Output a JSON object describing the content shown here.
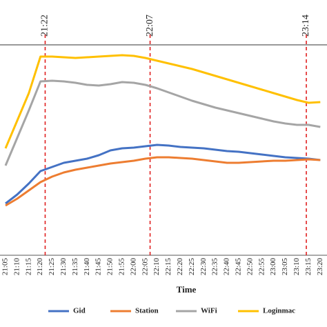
{
  "chart_data": {
    "type": "line",
    "categories": [
      "21:05",
      "21:10",
      "21:15",
      "21:20",
      "21:25",
      "21:30",
      "21:35",
      "21:40",
      "21:45",
      "21:50",
      "21:55",
      "22:00",
      "22:05",
      "22:10",
      "22:15",
      "22:20",
      "22:25",
      "22:30",
      "22:35",
      "22:40",
      "22:45",
      "22:50",
      "22:55",
      "23:00",
      "23:05",
      "23:10",
      "23:15",
      "23:20"
    ],
    "x_label": "Time",
    "ylim": [
      0,
      305
    ],
    "annotations": [
      "21:22",
      "22:07",
      "23:14"
    ],
    "series": [
      {
        "name": "Gid",
        "color": "#4472c4",
        "values": [
          75,
          88,
          104,
          122,
          128,
          134,
          137,
          140,
          145,
          152,
          155,
          156,
          158,
          160,
          159,
          157,
          156,
          155,
          153,
          151,
          150,
          148,
          146,
          144,
          142,
          141,
          140,
          138
        ]
      },
      {
        "name": "Station",
        "color": "#ed7d31",
        "values": [
          72,
          82,
          94,
          106,
          114,
          120,
          124,
          127,
          130,
          133,
          135,
          137,
          140,
          142,
          142,
          141,
          140,
          138,
          136,
          134,
          134,
          135,
          136,
          137,
          137,
          138,
          139,
          138
        ]
      },
      {
        "name": "WiFi",
        "color": "#a5a5a5",
        "values": [
          130,
          170,
          210,
          252,
          253,
          252,
          250,
          247,
          246,
          248,
          251,
          250,
          247,
          242,
          236,
          230,
          224,
          219,
          214,
          210,
          206,
          202,
          198,
          194,
          191,
          189,
          189,
          186
        ]
      },
      {
        "name": "Loginmac",
        "color": "#ffc000",
        "values": [
          155,
          195,
          235,
          288,
          288,
          287,
          286,
          287,
          288,
          289,
          290,
          289,
          286,
          282,
          278,
          274,
          270,
          265,
          260,
          255,
          250,
          245,
          240,
          235,
          230,
          225,
          221,
          222
        ]
      }
    ]
  }
}
